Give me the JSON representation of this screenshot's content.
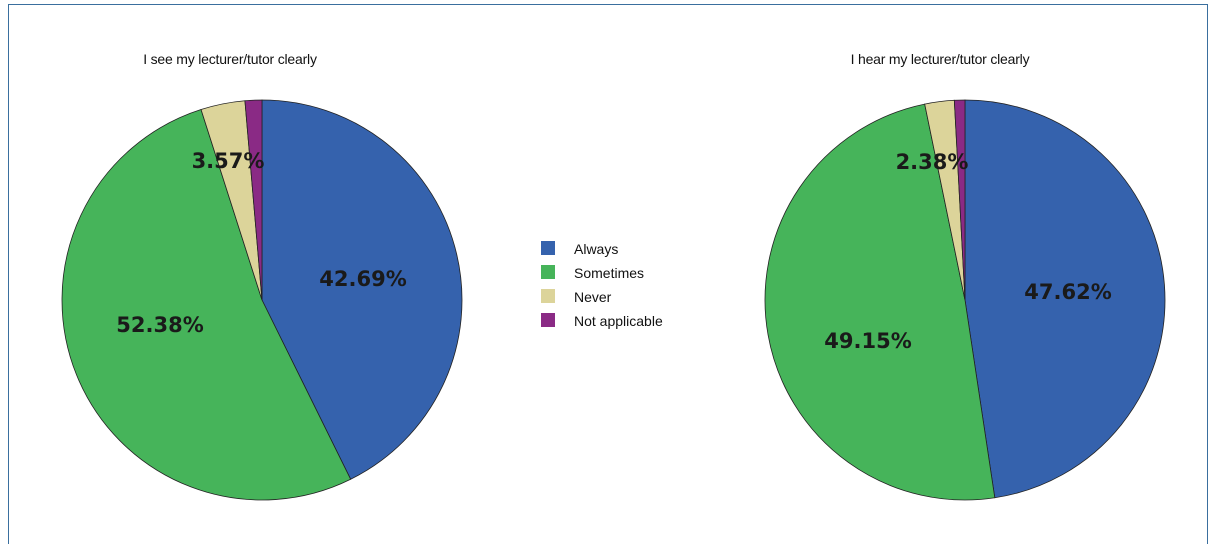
{
  "chart_data": [
    {
      "type": "pie",
      "title": "I see my lecturer/tutor clearly",
      "categories": [
        "Always",
        "Sometimes",
        "Never",
        "Not applicable"
      ],
      "values": [
        42.69,
        52.38,
        3.57,
        1.36
      ],
      "labels": [
        "42.69%",
        "52.38%",
        "3.57%",
        ""
      ]
    },
    {
      "type": "pie",
      "title": "I hear my lecturer/tutor clearly",
      "categories": [
        "Always",
        "Sometimes",
        "Never",
        "Not applicable"
      ],
      "values": [
        47.62,
        49.15,
        2.38,
        0.85
      ],
      "labels": [
        "47.62%",
        "49.15%",
        "2.38%",
        ""
      ]
    }
  ],
  "legend": {
    "placement": "center",
    "items": [
      {
        "label": "Always",
        "color": "#3562ad"
      },
      {
        "label": "Sometimes",
        "color": "#46b45a"
      },
      {
        "label": "Never",
        "color": "#dcd49a"
      },
      {
        "label": "Not applicable",
        "color": "#8a2a85"
      }
    ]
  }
}
